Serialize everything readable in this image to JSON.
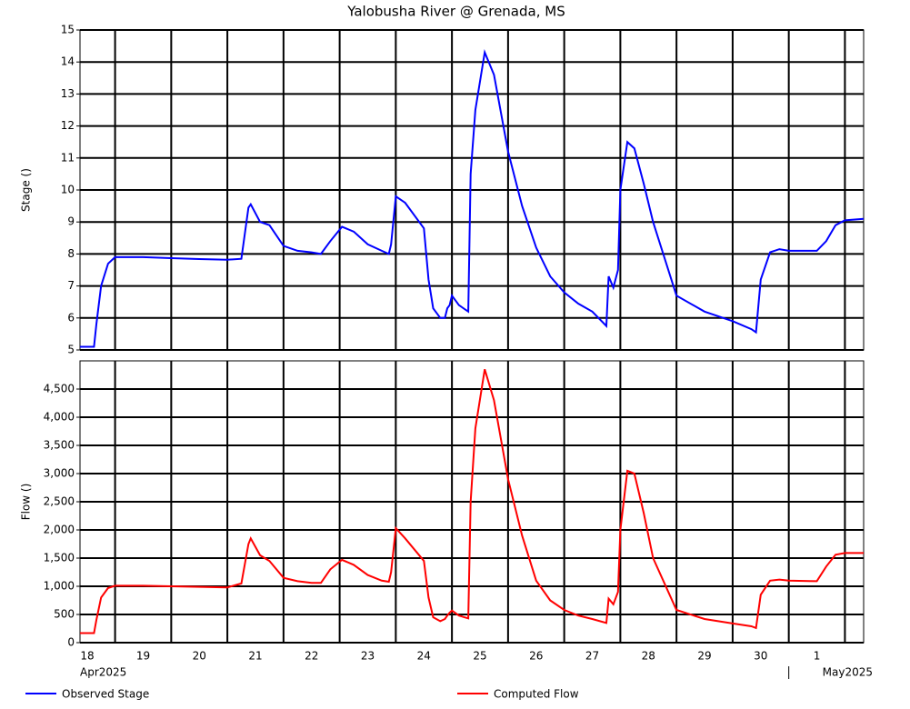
{
  "chart_data": [
    {
      "type": "line",
      "title": "Yalobusha River @ Grenada, MS",
      "ylabel": "Stage ()",
      "x": [
        "2025-04-18 09:00",
        "2025-04-18 15:00",
        "2025-04-18 16:00",
        "2025-04-18 18:00",
        "2025-04-18 21:00",
        "2025-04-19 00:00",
        "2025-04-19 12:00",
        "2025-04-20 00:00",
        "2025-04-20 12:00",
        "2025-04-21 00:00",
        "2025-04-21 06:00",
        "2025-04-21 09:00",
        "2025-04-21 10:00",
        "2025-04-21 14:00",
        "2025-04-21 18:00",
        "2025-04-22 00:00",
        "2025-04-22 06:00",
        "2025-04-22 12:00",
        "2025-04-22 16:00",
        "2025-04-22 20:00",
        "2025-04-23 01:00",
        "2025-04-23 06:00",
        "2025-04-23 12:00",
        "2025-04-23 18:00",
        "2025-04-23 21:00",
        "2025-04-23 22:00",
        "2025-04-24 00:00",
        "2025-04-24 04:00",
        "2025-04-24 12:00",
        "2025-04-24 14:00",
        "2025-04-24 16:00",
        "2025-04-24 19:00",
        "2025-04-24 21:00",
        "2025-04-24 22:00",
        "2025-04-24 23:00",
        "2025-04-25 00:00",
        "2025-04-25 03:00",
        "2025-04-25 07:00",
        "2025-04-25 08:00",
        "2025-04-25 10:00",
        "2025-04-25 14:00",
        "2025-04-25 18:00",
        "2025-04-26 00:00",
        "2025-04-26 06:00",
        "2025-04-26 12:00",
        "2025-04-26 18:00",
        "2025-04-27 00:00",
        "2025-04-27 06:00",
        "2025-04-27 12:00",
        "2025-04-27 18:00",
        "2025-04-27 19:00",
        "2025-04-27 21:00",
        "2025-04-27 23:00",
        "2025-04-28 00:00",
        "2025-04-28 03:00",
        "2025-04-28 06:00",
        "2025-04-28 10:00",
        "2025-04-28 14:00",
        "2025-04-29 00:00",
        "2025-04-29 12:00",
        "2025-04-30 00:00",
        "2025-04-30 08:00",
        "2025-04-30 10:00",
        "2025-04-30 12:00",
        "2025-04-30 16:00",
        "2025-04-30 20:00",
        "2025-05-01 00:00",
        "2025-05-01 12:00",
        "2025-05-01 16:00",
        "2025-05-01 20:00",
        "2025-05-02 00:00",
        "2025-05-02 08:00"
      ],
      "series": [
        {
          "name": "Observed Stage",
          "color": "#0000ff",
          "values": [
            5.1,
            5.1,
            5.8,
            7.0,
            7.7,
            7.9,
            7.9,
            7.87,
            7.84,
            7.82,
            7.85,
            9.45,
            9.55,
            9.0,
            8.9,
            8.25,
            8.1,
            8.05,
            8.0,
            8.4,
            8.85,
            8.7,
            8.3,
            8.1,
            8.0,
            8.3,
            9.8,
            9.6,
            8.8,
            7.2,
            6.3,
            6.0,
            6.0,
            6.3,
            6.4,
            6.7,
            6.4,
            6.2,
            10.5,
            12.5,
            14.3,
            13.6,
            11.2,
            9.5,
            8.2,
            7.3,
            6.8,
            6.45,
            6.2,
            5.75,
            7.3,
            6.95,
            7.5,
            10.0,
            11.5,
            11.3,
            10.2,
            9.0,
            6.7,
            6.2,
            5.9,
            5.65,
            5.55,
            7.2,
            8.05,
            8.15,
            8.1,
            8.1,
            8.4,
            8.9,
            9.05,
            9.1
          ]
        }
      ],
      "xlim": [
        "2025-04-18 09:00",
        "2025-05-02 08:00"
      ],
      "xticks": [
        "2025-04-19",
        "2025-04-20",
        "2025-04-21",
        "2025-04-22",
        "2025-04-23",
        "2025-04-24",
        "2025-04-25",
        "2025-04-26",
        "2025-04-27",
        "2025-04-28",
        "2025-04-29",
        "2025-04-30",
        "2025-05-01",
        "2025-05-02"
      ],
      "ylim": [
        5,
        15
      ],
      "yticks": [
        5,
        6,
        7,
        8,
        9,
        10,
        11,
        12,
        13,
        14,
        15
      ],
      "grid": true
    },
    {
      "type": "line",
      "ylabel": "Flow ()",
      "x": [
        "2025-04-18 09:00",
        "2025-04-18 15:00",
        "2025-04-18 16:00",
        "2025-04-18 18:00",
        "2025-04-18 21:00",
        "2025-04-19 00:00",
        "2025-04-19 12:00",
        "2025-04-20 00:00",
        "2025-04-20 12:00",
        "2025-04-21 00:00",
        "2025-04-21 06:00",
        "2025-04-21 09:00",
        "2025-04-21 10:00",
        "2025-04-21 14:00",
        "2025-04-21 18:00",
        "2025-04-22 00:00",
        "2025-04-22 06:00",
        "2025-04-22 12:00",
        "2025-04-22 16:00",
        "2025-04-22 20:00",
        "2025-04-23 01:00",
        "2025-04-23 06:00",
        "2025-04-23 12:00",
        "2025-04-23 18:00",
        "2025-04-23 21:00",
        "2025-04-23 22:00",
        "2025-04-24 00:00",
        "2025-04-24 04:00",
        "2025-04-24 12:00",
        "2025-04-24 14:00",
        "2025-04-24 16:00",
        "2025-04-24 19:00",
        "2025-04-24 21:00",
        "2025-04-24 22:00",
        "2025-04-24 23:00",
        "2025-04-25 00:00",
        "2025-04-25 03:00",
        "2025-04-25 07:00",
        "2025-04-25 08:00",
        "2025-04-25 10:00",
        "2025-04-25 14:00",
        "2025-04-25 18:00",
        "2025-04-26 00:00",
        "2025-04-26 06:00",
        "2025-04-26 12:00",
        "2025-04-26 18:00",
        "2025-04-27 00:00",
        "2025-04-27 06:00",
        "2025-04-27 12:00",
        "2025-04-27 18:00",
        "2025-04-27 19:00",
        "2025-04-27 21:00",
        "2025-04-27 23:00",
        "2025-04-28 00:00",
        "2025-04-28 03:00",
        "2025-04-28 06:00",
        "2025-04-28 10:00",
        "2025-04-28 14:00",
        "2025-04-29 00:00",
        "2025-04-29 12:00",
        "2025-04-30 00:00",
        "2025-04-30 08:00",
        "2025-04-30 10:00",
        "2025-04-30 12:00",
        "2025-04-30 16:00",
        "2025-04-30 20:00",
        "2025-05-01 00:00",
        "2025-05-01 12:00",
        "2025-05-01 16:00",
        "2025-05-01 20:00",
        "2025-05-02 00:00",
        "2025-05-02 08:00"
      ],
      "series": [
        {
          "name": "Computed Flow",
          "color": "#ff0000",
          "values": [
            170,
            170,
            400,
            800,
            970,
            1010,
            1010,
            1000,
            990,
            980,
            1050,
            1750,
            1850,
            1550,
            1450,
            1150,
            1090,
            1060,
            1060,
            1300,
            1470,
            1380,
            1200,
            1100,
            1080,
            1250,
            2030,
            1850,
            1450,
            800,
            450,
            380,
            420,
            480,
            530,
            570,
            480,
            430,
            2500,
            3800,
            4850,
            4300,
            2900,
            1900,
            1100,
            750,
            580,
            480,
            420,
            350,
            780,
            680,
            900,
            2000,
            3050,
            3000,
            2300,
            1500,
            580,
            420,
            340,
            290,
            260,
            850,
            1100,
            1120,
            1100,
            1090,
            1350,
            1560,
            1590,
            1590
          ]
        }
      ],
      "xlim": [
        "2025-04-18 09:00",
        "2025-05-02 08:00"
      ],
      "xticks": [
        {
          "value": "2025-04-18",
          "label": "18"
        },
        {
          "value": "2025-04-19",
          "label": "19"
        },
        {
          "value": "2025-04-20",
          "label": "20"
        },
        {
          "value": "2025-04-21",
          "label": "21"
        },
        {
          "value": "2025-04-22",
          "label": "22"
        },
        {
          "value": "2025-04-23",
          "label": "23"
        },
        {
          "value": "2025-04-24",
          "label": "24"
        },
        {
          "value": "2025-04-25",
          "label": "25"
        },
        {
          "value": "2025-04-26",
          "label": "26"
        },
        {
          "value": "2025-04-27",
          "label": "27"
        },
        {
          "value": "2025-04-28",
          "label": "28"
        },
        {
          "value": "2025-04-29",
          "label": "29"
        },
        {
          "value": "2025-04-30",
          "label": "30"
        },
        {
          "value": "2025-05-01",
          "label": "1"
        },
        {
          "value": "2025-05-02",
          "label": ""
        }
      ],
      "month_labels": [
        {
          "value": "2025-04-18",
          "label": "Apr2025"
        },
        {
          "value": "2025-05-01",
          "label": "May2025"
        }
      ],
      "ylim": [
        0,
        5000
      ],
      "yticks": [
        0,
        500,
        {
          "value": 1000,
          "label": "1,000"
        },
        {
          "value": 1500,
          "label": "1,500"
        },
        {
          "value": 2000,
          "label": "2,000"
        },
        {
          "value": 2500,
          "label": "2,500"
        },
        {
          "value": 3000,
          "label": "3,000"
        },
        {
          "value": 3500,
          "label": "3,500"
        },
        {
          "value": 4000,
          "label": "4,000"
        },
        {
          "value": 4500,
          "label": "4,500"
        }
      ],
      "grid": true
    }
  ]
}
